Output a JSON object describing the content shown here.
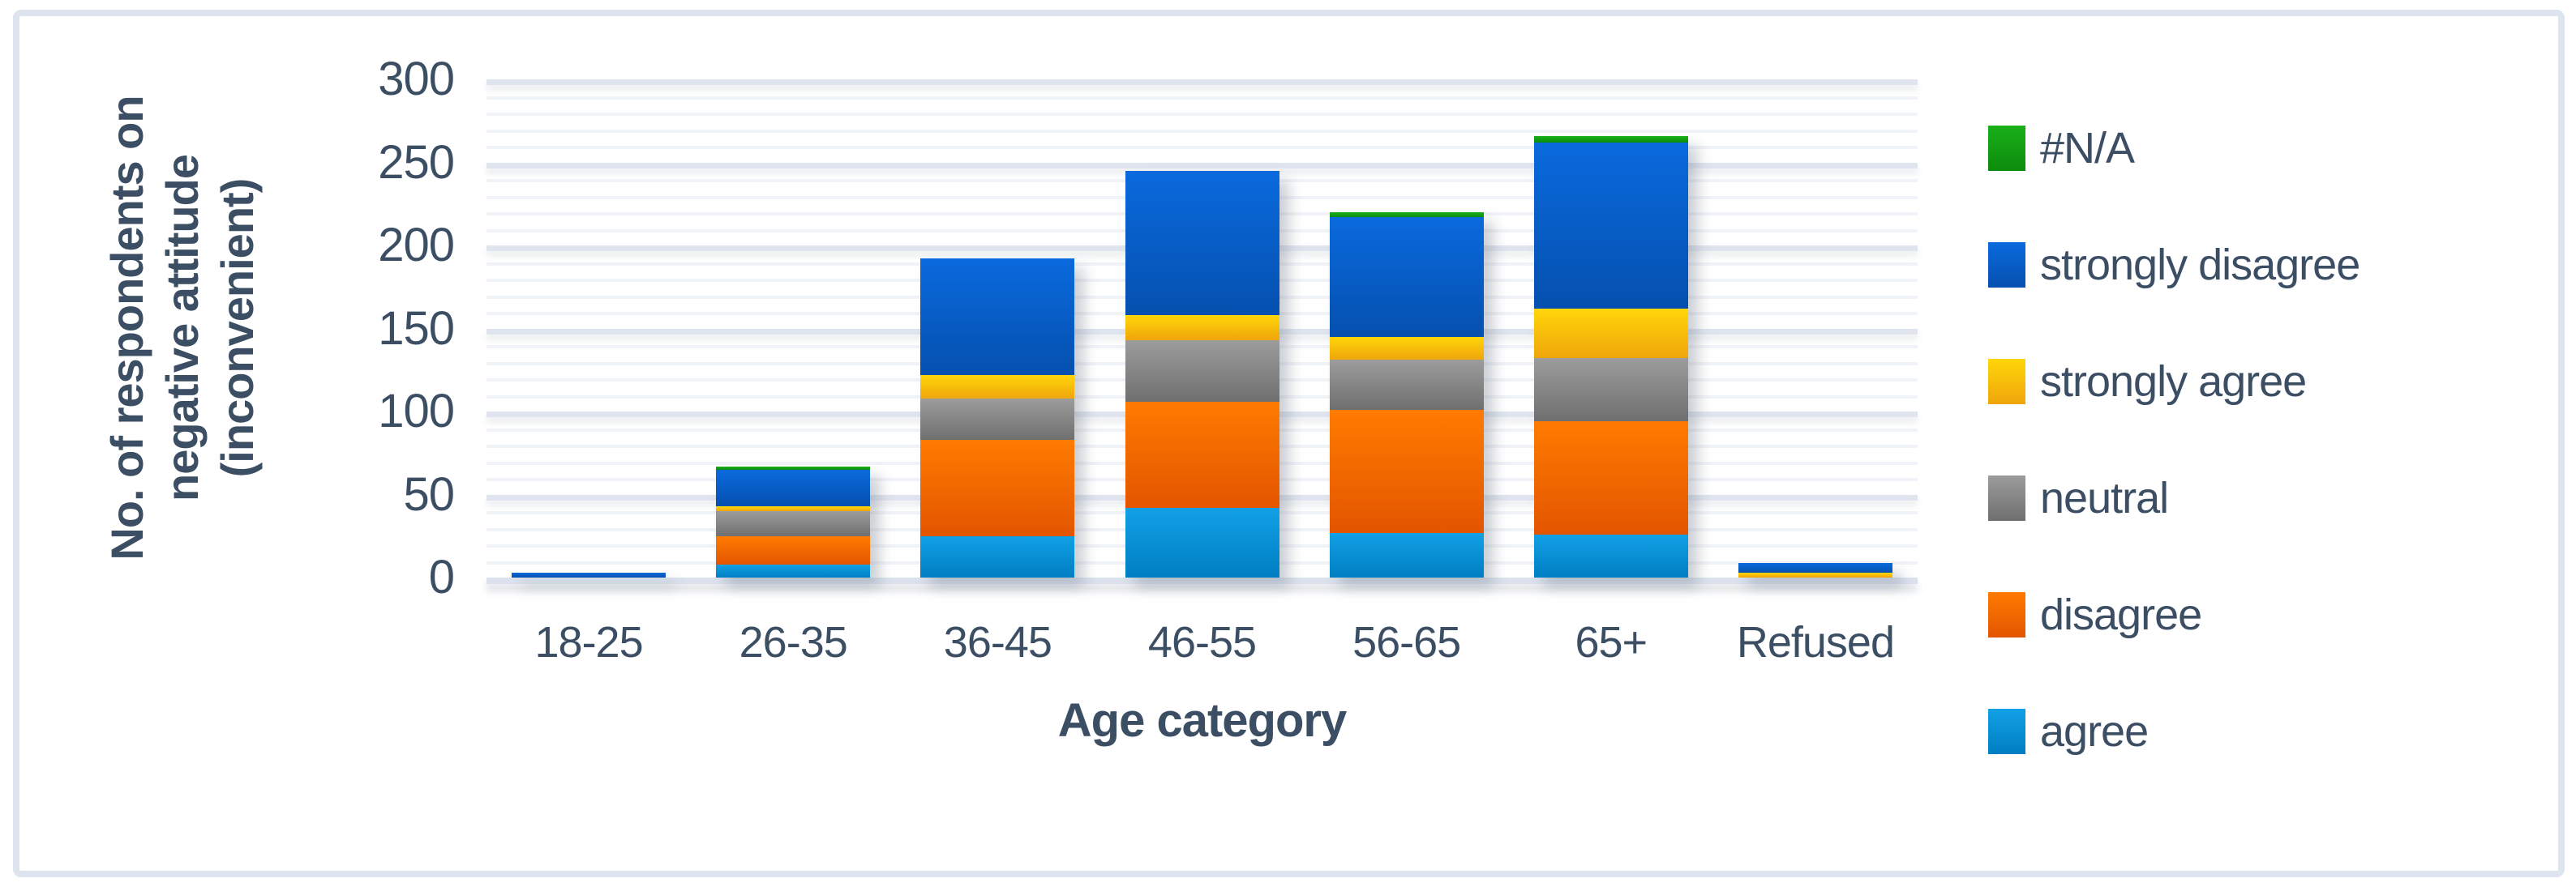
{
  "figure": {
    "description": "Stacked column chart of respondent attitudes by age category",
    "background": "#ffffff",
    "frame_border_color": "#dde4ee"
  },
  "colors": {
    "text": "#3b4e63",
    "axis_line": "#dbe2ee",
    "major_grid": "#dfe4ee",
    "minor_grid": "#f0f3f7"
  },
  "chart_data": {
    "type": "bar",
    "stacked": true,
    "title": "",
    "xlabel": "Age category",
    "ylabel": "No. of respondents on negative attitude (inconvenient)",
    "ylabel_lines": [
      "No. of respondents on",
      "negative attitude",
      "(inconvenient)"
    ],
    "categories": [
      "18-25",
      "26-35",
      "36-45",
      "46-55",
      "56-65",
      "65+",
      "Refused"
    ],
    "ylim": [
      0,
      300
    ],
    "ytick_step": 50,
    "minor_grid_step": 10,
    "grid": true,
    "yticks": [
      "0",
      "50",
      "100",
      "150",
      "200",
      "250",
      "300"
    ],
    "series": [
      {
        "name": "agree",
        "color_top": "#12a0e6",
        "color_bottom": "#007ec2",
        "values": [
          0,
          8,
          25,
          42,
          27,
          26,
          0
        ]
      },
      {
        "name": "disagree",
        "color_top": "#ff7b00",
        "color_bottom": "#e35500",
        "values": [
          0,
          17,
          58,
          64,
          74,
          68,
          0
        ]
      },
      {
        "name": "neutral",
        "color_top": "#9c9c9c",
        "color_bottom": "#6f6f6f",
        "values": [
          0,
          15,
          25,
          37,
          30,
          38,
          0
        ]
      },
      {
        "name": "strongly agree",
        "color_top": "#ffd60a",
        "color_bottom": "#efa50a",
        "values": [
          0,
          3,
          14,
          15,
          14,
          30,
          3
        ]
      },
      {
        "name": "strongly disagree",
        "color_top": "#0a6add",
        "color_bottom": "#0550af",
        "values": [
          3,
          22,
          70,
          87,
          72,
          100,
          6
        ]
      },
      {
        "name": "#N/A",
        "color_top": "#19b019",
        "color_bottom": "#0c8c0c",
        "values": [
          0,
          2,
          0,
          0,
          3,
          4,
          0
        ]
      }
    ],
    "totals": [
      3,
      67,
      192,
      245,
      220,
      266,
      9
    ],
    "legend": {
      "position": "right",
      "order_top_to_bottom": [
        "#N/A",
        "strongly disagree",
        "strongly agree",
        "neutral",
        "disagree",
        "agree"
      ]
    }
  }
}
